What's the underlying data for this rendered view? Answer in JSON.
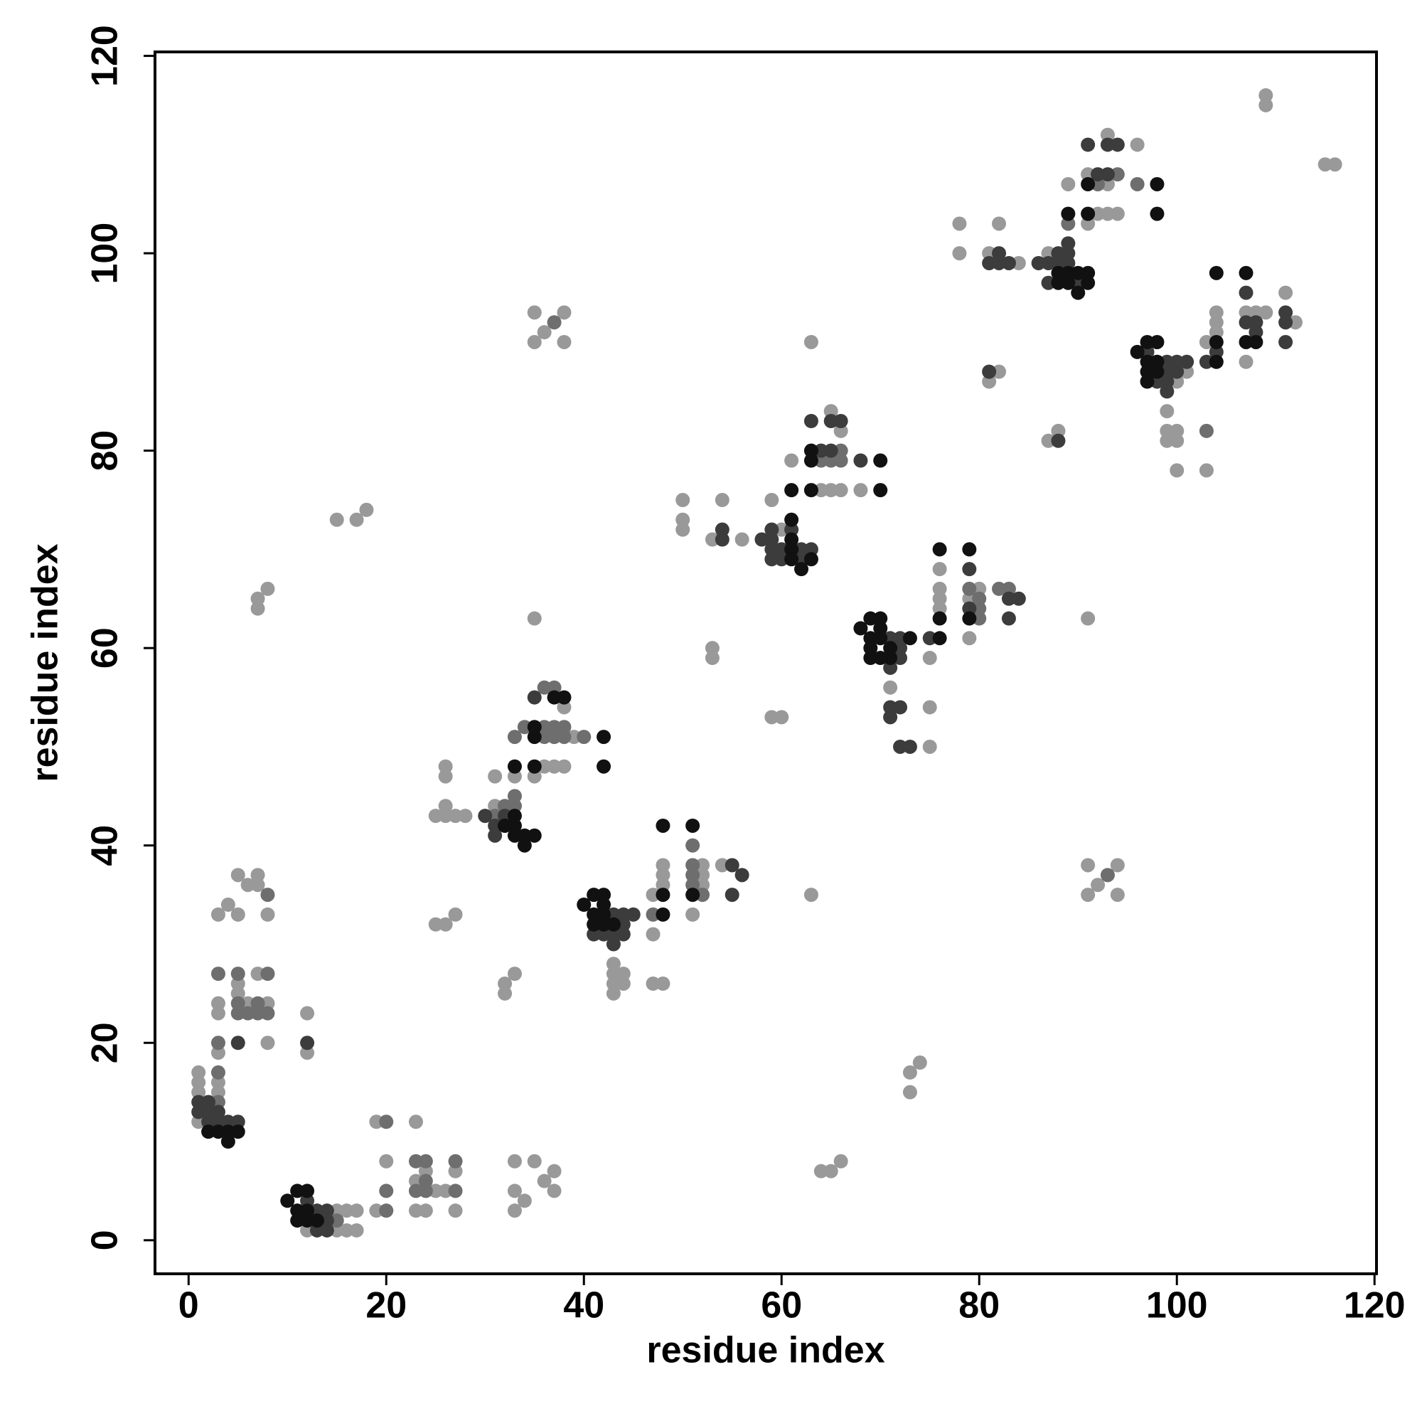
{
  "chart_data": {
    "type": "scatter",
    "xlabel": "residue index",
    "ylabel": "residue index",
    "xlim": [
      -3.4,
      120.2
    ],
    "ylim": [
      -3.4,
      120.4
    ],
    "xticks": [
      0,
      20,
      40,
      60,
      80,
      100,
      120
    ],
    "yticks": [
      0,
      20,
      40,
      60,
      80,
      100,
      120
    ],
    "series": [
      {
        "color": "#999999",
        "x": [
          1,
          1,
          1,
          1,
          3,
          3,
          3,
          4,
          5,
          5,
          6,
          7,
          7,
          8,
          3,
          3,
          5,
          5,
          7,
          8,
          8,
          3,
          6,
          12,
          12,
          12,
          15,
          16,
          17,
          15,
          16,
          17,
          19,
          19,
          20,
          23,
          23,
          24,
          24,
          25,
          26,
          27,
          27,
          23,
          33,
          33,
          34,
          33,
          35,
          36,
          37,
          37,
          15,
          17,
          18,
          7,
          7,
          8,
          35,
          35,
          36,
          38,
          38,
          35,
          25,
          26,
          27,
          28,
          26,
          26,
          26,
          25,
          26,
          27,
          32,
          32,
          33,
          31,
          33,
          31,
          35,
          36,
          37,
          38,
          38,
          39,
          43,
          43,
          43,
          43,
          44,
          44,
          47,
          48,
          47,
          47,
          48,
          48,
          48,
          51,
          52,
          52,
          54,
          52,
          50,
          50,
          50,
          54,
          53,
          56,
          59,
          60,
          53,
          53,
          59,
          60,
          63,
          63,
          65,
          66,
          64,
          65,
          66,
          68,
          61,
          71,
          75,
          75,
          75,
          76,
          76,
          76,
          76,
          79,
          80,
          79,
          73,
          74,
          73,
          64,
          65,
          66,
          78,
          78,
          82,
          81,
          81,
          82,
          84,
          87,
          88,
          87,
          89,
          91,
          91,
          92,
          93,
          94,
          93,
          92,
          96,
          93,
          99,
          99,
          100,
          100,
          103,
          99,
          100,
          100,
          101,
          103,
          104,
          104,
          104,
          107,
          107,
          108,
          109,
          111,
          112,
          109,
          109,
          115,
          116,
          91,
          91,
          91,
          92,
          94,
          94
        ],
        "values": [
          12,
          15,
          16,
          17,
          16,
          15,
          33,
          34,
          37,
          33,
          36,
          37,
          36,
          33,
          24,
          23,
          26,
          25,
          27,
          24,
          20,
          19,
          24,
          23,
          19,
          1,
          3,
          3,
          3,
          1,
          1,
          1,
          12,
          3,
          8,
          12,
          3,
          3,
          7,
          5,
          5,
          7,
          3,
          6,
          8,
          5,
          4,
          3,
          8,
          6,
          7,
          5,
          73,
          73,
          74,
          65,
          64,
          66,
          94,
          91,
          92,
          94,
          91,
          63,
          43,
          43,
          43,
          43,
          44,
          47,
          48,
          32,
          32,
          33,
          25,
          26,
          27,
          47,
          47,
          44,
          47,
          48,
          48,
          48,
          54,
          51,
          28,
          27,
          26,
          25,
          26,
          27,
          26,
          26,
          31,
          35,
          36,
          37,
          38,
          33,
          36,
          38,
          38,
          37,
          75,
          73,
          72,
          75,
          71,
          71,
          75,
          72,
          60,
          59,
          53,
          53,
          91,
          35,
          84,
          82,
          76,
          76,
          76,
          76,
          79,
          56,
          54,
          50,
          59,
          68,
          66,
          65,
          64,
          61,
          66,
          65,
          17,
          18,
          15,
          7,
          7,
          8,
          103,
          100,
          103,
          100,
          87,
          88,
          99,
          81,
          82,
          100,
          107,
          103,
          108,
          104,
          104,
          104,
          112,
          107,
          111,
          107,
          84,
          82,
          81,
          78,
          78,
          81,
          82,
          87,
          88,
          91,
          94,
          93,
          92,
          94,
          89,
          94,
          94,
          96,
          93,
          116,
          115,
          109,
          109,
          63,
          38,
          35,
          36,
          38,
          35
        ]
      },
      {
        "color": "#6e6e6e",
        "x": [
          3,
          3,
          5,
          5,
          5,
          6,
          7,
          7,
          8,
          8,
          8,
          3,
          3,
          15,
          20,
          20,
          20,
          23,
          24,
          24,
          23,
          24,
          27,
          27,
          37,
          31,
          32,
          33,
          33,
          36,
          37,
          36,
          37,
          38,
          36,
          37,
          40,
          33,
          34,
          38,
          47,
          51,
          51,
          51,
          51,
          52,
          64,
          65,
          66,
          66,
          79,
          80,
          80,
          80,
          82,
          83,
          89,
          92,
          94,
          96,
          93,
          103
        ],
        "values": [
          27,
          20,
          27,
          24,
          23,
          23,
          24,
          23,
          27,
          35,
          23,
          17,
          14,
          2,
          12,
          5,
          3,
          8,
          8,
          5,
          5,
          6,
          8,
          5,
          93,
          43,
          44,
          44,
          45,
          52,
          52,
          51,
          51,
          52,
          56,
          56,
          51,
          51,
          52,
          51,
          33,
          36,
          37,
          38,
          40,
          35,
          79,
          79,
          79,
          80,
          66,
          63,
          65,
          64,
          66,
          66,
          103,
          107,
          108,
          107,
          37,
          82
        ]
      },
      {
        "color": "#3c3c3c",
        "x": [
          1,
          1,
          2,
          2,
          3,
          3,
          4,
          5,
          2,
          5,
          12,
          13,
          14,
          13,
          14,
          14,
          12,
          31,
          31,
          32,
          30,
          35,
          43,
          44,
          45,
          44,
          44,
          43,
          41,
          42,
          43,
          55,
          55,
          56,
          54,
          54,
          58,
          59,
          59,
          60,
          60,
          61,
          62,
          62,
          59,
          63,
          59,
          63,
          64,
          65,
          65,
          66,
          68,
          71,
          72,
          72,
          72,
          71,
          71,
          71,
          72,
          72,
          73,
          75,
          79,
          79,
          83,
          83,
          84,
          81,
          82,
          82,
          81,
          83,
          88,
          86,
          87,
          88,
          89,
          87,
          88,
          89,
          89,
          90,
          91,
          92,
          93,
          93,
          94,
          97,
          99,
          99,
          100,
          101,
          99,
          100,
          98,
          99,
          103,
          107,
          107,
          108,
          108,
          111,
          111,
          111,
          104
        ],
        "values": [
          13,
          14,
          13,
          14,
          13,
          12,
          12,
          12,
          12,
          20,
          20,
          3,
          3,
          1,
          1,
          2,
          4,
          42,
          41,
          43,
          43,
          55,
          33,
          33,
          33,
          32,
          31,
          30,
          31,
          31,
          31,
          38,
          35,
          37,
          72,
          71,
          71,
          71,
          72,
          70,
          69,
          72,
          70,
          69,
          69,
          70,
          70,
          83,
          80,
          80,
          83,
          83,
          79,
          61,
          61,
          60,
          59,
          58,
          54,
          53,
          54,
          50,
          50,
          61,
          68,
          64,
          65,
          63,
          65,
          99,
          99,
          100,
          88,
          99,
          81,
          99,
          99,
          99,
          99,
          97,
          100,
          101,
          100,
          97,
          111,
          108,
          108,
          111,
          111,
          90,
          89,
          88,
          89,
          89,
          87,
          88,
          87,
          86,
          89,
          96,
          93,
          93,
          92,
          94,
          91,
          93,
          90
        ]
      },
      {
        "color": "#111111",
        "x": [
          2,
          3,
          4,
          4,
          5,
          10,
          11,
          12,
          11,
          12,
          11,
          12,
          13,
          33,
          34,
          33,
          34,
          35,
          32,
          33,
          33,
          35,
          35,
          35,
          42,
          42,
          37,
          38,
          40,
          41,
          42,
          41,
          42,
          41,
          42,
          43,
          42,
          48,
          51,
          48,
          48,
          51,
          61,
          61,
          61,
          62,
          63,
          61,
          61,
          63,
          63,
          63,
          70,
          70,
          68,
          69,
          69,
          70,
          70,
          70,
          69,
          71,
          70,
          69,
          71,
          73,
          76,
          79,
          76,
          76,
          79,
          88,
          89,
          89,
          90,
          90,
          91,
          91,
          88,
          89,
          91,
          91,
          98,
          98,
          96,
          97,
          98,
          97,
          98,
          97,
          98,
          97,
          104,
          107,
          104,
          104,
          107,
          108
        ],
        "values": [
          11,
          11,
          11,
          10,
          11,
          4,
          5,
          5,
          3,
          3,
          2,
          2,
          2,
          41,
          41,
          42,
          40,
          41,
          42,
          43,
          48,
          51,
          52,
          48,
          51,
          48,
          55,
          55,
          34,
          35,
          35,
          33,
          33,
          32,
          32,
          32,
          34,
          42,
          42,
          35,
          33,
          35,
          71,
          70,
          69,
          68,
          69,
          73,
          76,
          79,
          80,
          76,
          79,
          76,
          62,
          61,
          63,
          61,
          62,
          63,
          60,
          59,
          59,
          59,
          60,
          61,
          70,
          70,
          63,
          61,
          63,
          98,
          98,
          97,
          96,
          98,
          98,
          97,
          97,
          104,
          104,
          107,
          107,
          104,
          90,
          91,
          91,
          89,
          89,
          88,
          88,
          87,
          98,
          98,
          91,
          89,
          91,
          91
        ]
      }
    ]
  }
}
